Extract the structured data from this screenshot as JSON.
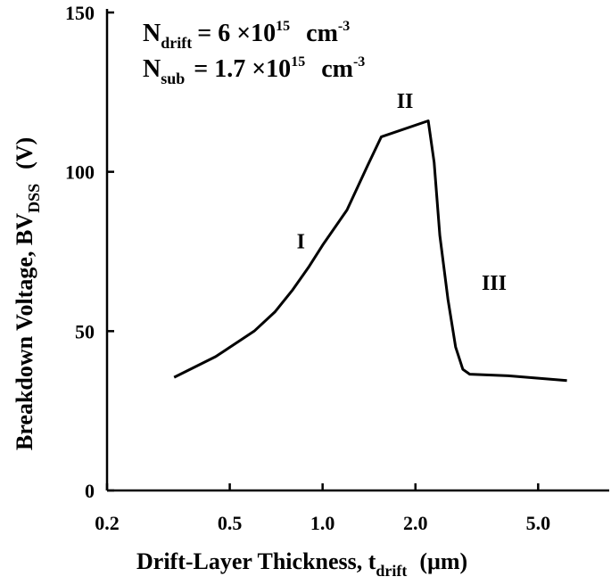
{
  "chart_data": {
    "type": "line",
    "xscale": "log",
    "xlim": [
      0.2,
      8.5
    ],
    "ylim": [
      0,
      150
    ],
    "x_ticks": [
      {
        "value": 0.2,
        "label": "0.2"
      },
      {
        "value": 0.5,
        "label": "0.5"
      },
      {
        "value": 1.0,
        "label": "1.0"
      },
      {
        "value": 2.0,
        "label": "2.0"
      },
      {
        "value": 5.0,
        "label": "5.0"
      }
    ],
    "y_ticks": [
      {
        "value": 0,
        "label": "0"
      },
      {
        "value": 50,
        "label": "50"
      },
      {
        "value": 100,
        "label": "100"
      },
      {
        "value": 150,
        "label": "150"
      }
    ],
    "xlabel": {
      "main": "Drift-Layer Thickness, t",
      "sub": "drift",
      "unit": "(μm)"
    },
    "ylabel": {
      "main": "Breakdown Voltage, BV",
      "sub": "DSS",
      "unit": "(V)"
    },
    "grid": false,
    "annotations": {
      "ndrift": {
        "symbol": "N",
        "sub": "drift",
        "value": "= 6 ×10",
        "exp": "15",
        "unit": "cm",
        "unit_exp": "-3"
      },
      "nsub": {
        "symbol": "N",
        "sub": "sub",
        "value": "= 1.7 ×10",
        "exp": "15",
        "unit": "cm",
        "unit_exp": "-3"
      }
    },
    "regions": [
      {
        "label": "I",
        "x": 0.85,
        "y": 76
      },
      {
        "label": "II",
        "x": 1.85,
        "y": 120
      },
      {
        "label": "III",
        "x": 3.6,
        "y": 63
      }
    ],
    "series": [
      {
        "color": "#000000",
        "points": [
          [
            0.33,
            35.5
          ],
          [
            0.45,
            42
          ],
          [
            0.6,
            50
          ],
          [
            0.7,
            56
          ],
          [
            0.8,
            63
          ],
          [
            0.9,
            70
          ],
          [
            1.0,
            77
          ],
          [
            1.2,
            88
          ],
          [
            1.4,
            102
          ],
          [
            1.55,
            111
          ],
          [
            2.2,
            116
          ],
          [
            2.3,
            103
          ],
          [
            2.4,
            80
          ],
          [
            2.55,
            60
          ],
          [
            2.7,
            45
          ],
          [
            2.85,
            38
          ],
          [
            3.0,
            36.5
          ],
          [
            4.0,
            36
          ],
          [
            6.2,
            34.5
          ]
        ]
      }
    ]
  }
}
